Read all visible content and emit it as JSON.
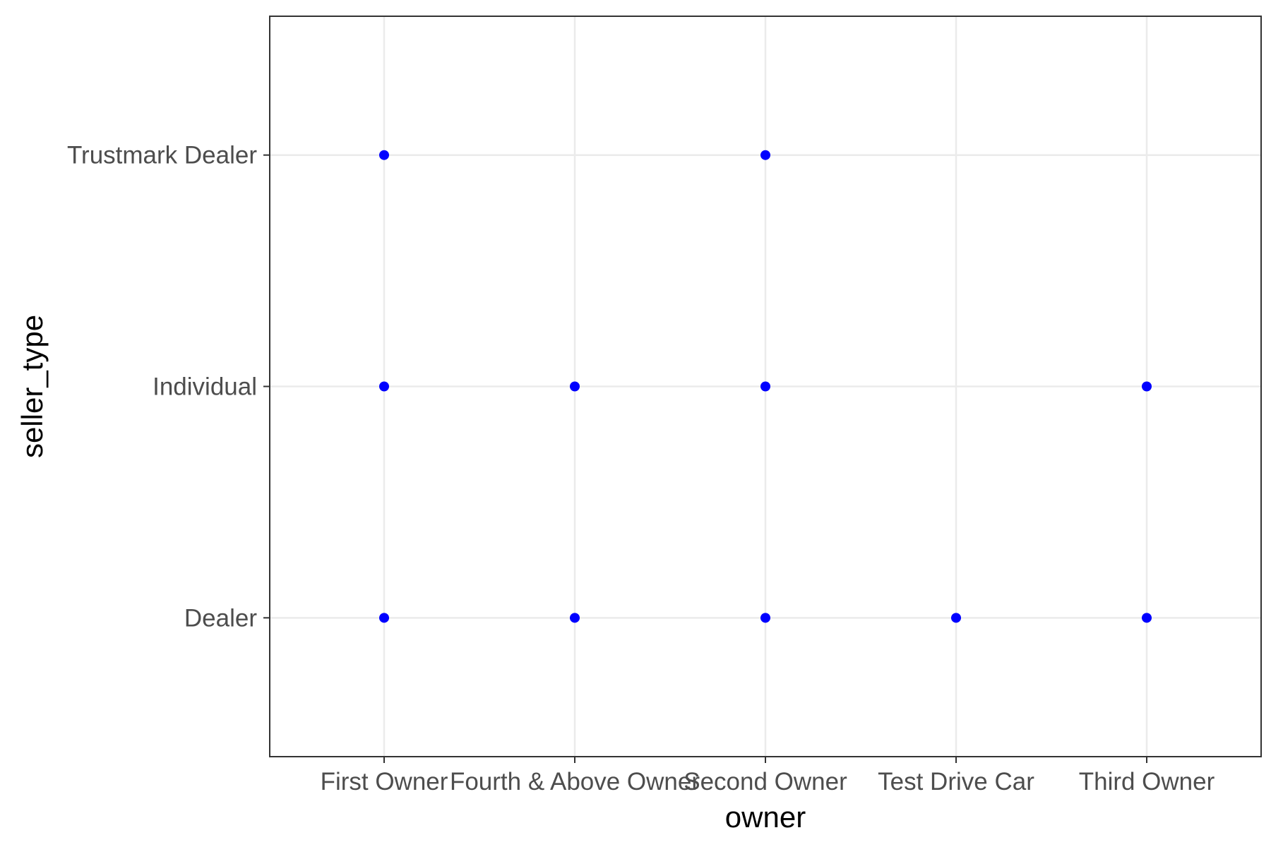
{
  "chart_data": {
    "type": "scatter",
    "title": "",
    "xlabel": "owner",
    "ylabel": "seller_type",
    "x_categories": [
      "First Owner",
      "Fourth & Above Owner",
      "Second Owner",
      "Test Drive Car",
      "Third Owner"
    ],
    "y_categories": [
      "Dealer",
      "Individual",
      "Trustmark Dealer"
    ],
    "points": [
      {
        "x": "First Owner",
        "y": "Trustmark Dealer"
      },
      {
        "x": "Second Owner",
        "y": "Trustmark Dealer"
      },
      {
        "x": "First Owner",
        "y": "Individual"
      },
      {
        "x": "Fourth & Above Owner",
        "y": "Individual"
      },
      {
        "x": "Second Owner",
        "y": "Individual"
      },
      {
        "x": "Third Owner",
        "y": "Individual"
      },
      {
        "x": "First Owner",
        "y": "Dealer"
      },
      {
        "x": "Fourth & Above Owner",
        "y": "Dealer"
      },
      {
        "x": "Second Owner",
        "y": "Dealer"
      },
      {
        "x": "Test Drive Car",
        "y": "Dealer"
      },
      {
        "x": "Third Owner",
        "y": "Dealer"
      }
    ],
    "point_color": "#0000ff",
    "grid": true,
    "grid_color": "#ebebeb",
    "legend": "none",
    "theme": "bw"
  }
}
